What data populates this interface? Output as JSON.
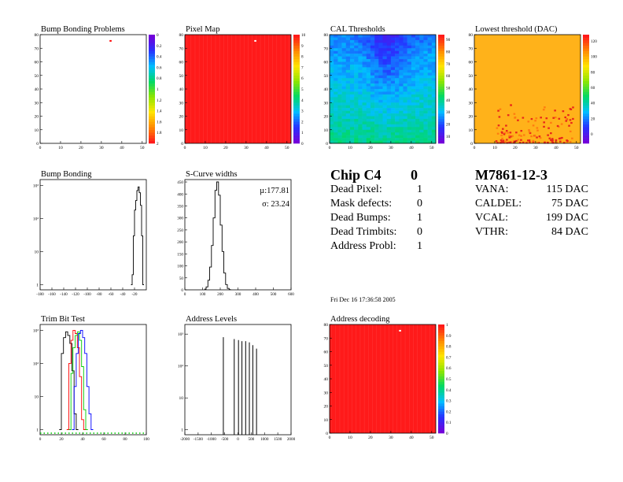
{
  "chart_data": [
    {
      "id": "bump_problems",
      "type": "heatmap",
      "title": "Bump Bonding Problems",
      "xlim": [
        0,
        52
      ],
      "ylim": [
        0,
        80
      ],
      "xticks": [
        0,
        10,
        20,
        30,
        40,
        50
      ],
      "yticks": [
        0,
        10,
        20,
        30,
        40,
        50,
        60,
        70,
        80
      ],
      "fill": "empty",
      "hot_pixels": [
        [
          34,
          75
        ]
      ],
      "palette_labels": [
        "0",
        "0.2",
        "0.4",
        "0.6",
        "0.8",
        "1",
        "1.2",
        "1.4",
        "1.6",
        "1.8",
        "2"
      ],
      "palette_reversed": true
    },
    {
      "id": "pixel_map",
      "type": "heatmap",
      "title": "Pixel Map",
      "xlim": [
        0,
        52
      ],
      "ylim": [
        0,
        80
      ],
      "xticks": [
        0,
        10,
        20,
        30,
        40,
        50
      ],
      "yticks": [
        0,
        10,
        20,
        30,
        40,
        50,
        60,
        70,
        80
      ],
      "fill": "uniform",
      "hot_pixels": [
        [
          34,
          75
        ]
      ],
      "palette_labels": [
        "0",
        "1",
        "2",
        "3",
        "4",
        "5",
        "6",
        "7",
        "8",
        "9",
        "10"
      ],
      "palette_reversed": false
    },
    {
      "id": "cal_thresholds",
      "type": "heatmap",
      "title": "CAL Thresholds",
      "xlim": [
        0,
        52
      ],
      "ylim": [
        0,
        80
      ],
      "xticks": [
        0,
        10,
        20,
        30,
        40,
        50
      ],
      "yticks": [
        0,
        10,
        20,
        30,
        40,
        50,
        60,
        70,
        80
      ],
      "fill": "gradient",
      "palette_labels": [
        "10",
        "20",
        "30",
        "40",
        "50",
        "60",
        "70",
        "80",
        "90"
      ],
      "palette_reversed": false
    },
    {
      "id": "lowest_threshold",
      "type": "heatmap",
      "title": "Lowest threshold (DAC)",
      "xlim": [
        0,
        52
      ],
      "ylim": [
        0,
        80
      ],
      "xticks": [
        0,
        10,
        20,
        30,
        40,
        50
      ],
      "yticks": [
        0,
        10,
        20,
        30,
        40,
        50,
        60,
        70,
        80
      ],
      "fill": "speckle",
      "palette_labels": [
        "0",
        "20",
        "40",
        "60",
        "80",
        "100",
        "120"
      ],
      "palette_reversed": false
    },
    {
      "id": "bump_bonding",
      "type": "line",
      "title": "Bump Bonding",
      "xlim": [
        -180,
        0
      ],
      "xticks": [
        -180,
        -160,
        -140,
        -120,
        -100,
        -80,
        -60,
        -40,
        -20
      ],
      "ylog": true,
      "ylim": [
        0.7,
        1500
      ],
      "ytick_labels": [
        "1",
        "10",
        "10²",
        "10³"
      ],
      "ytick_values": [
        1,
        10,
        100,
        1000
      ],
      "x": [
        -26,
        -24,
        -22,
        -20,
        -18,
        -16,
        -14,
        -12,
        -10,
        -8,
        -6
      ],
      "y": [
        1,
        2,
        30,
        180,
        350,
        700,
        900,
        600,
        250,
        30,
        1
      ]
    },
    {
      "id": "scurve_widths",
      "type": "line",
      "title": "S-Curve widths",
      "xlim": [
        0,
        600
      ],
      "xticks": [
        0,
        100,
        200,
        300,
        400,
        500,
        600
      ],
      "ylim": [
        0,
        460
      ],
      "yticks": [
        0,
        50,
        100,
        150,
        200,
        250,
        300,
        350,
        400,
        450
      ],
      "stats": [
        "µ:177.81",
        "σ: 23.24"
      ],
      "x": [
        110,
        120,
        130,
        140,
        150,
        160,
        170,
        180,
        190,
        200,
        210,
        220,
        230,
        240,
        250
      ],
      "y": [
        3,
        12,
        40,
        95,
        185,
        300,
        415,
        450,
        395,
        270,
        160,
        70,
        22,
        6,
        1
      ]
    },
    {
      "id": "trim_bit_test",
      "type": "line",
      "title": "Trim Bit Test",
      "xlim": [
        0,
        100
      ],
      "xticks": [
        0,
        20,
        40,
        60,
        80,
        100
      ],
      "ylog": true,
      "ylim": [
        0.7,
        1500
      ],
      "ytick_labels": [
        "1",
        "10",
        "10²",
        "10³"
      ],
      "ytick_values": [
        1,
        10,
        100,
        1000
      ],
      "series": [
        {
          "color": "#000000",
          "x": [
            18,
            20,
            22,
            24,
            26,
            28,
            30,
            32,
            34
          ],
          "y": [
            1,
            200,
            600,
            900,
            700,
            400,
            60,
            3,
            1
          ]
        },
        {
          "color": "#ff0000",
          "x": [
            25,
            27,
            29,
            31,
            33,
            35,
            37,
            39,
            41
          ],
          "y": [
            1,
            100,
            500,
            1000,
            800,
            300,
            40,
            2,
            1
          ]
        },
        {
          "color": "#00cc00",
          "x": [
            27,
            29,
            31,
            33,
            35,
            37,
            39,
            41,
            43
          ],
          "y": [
            1,
            50,
            300,
            700,
            900,
            500,
            80,
            4,
            1
          ]
        },
        {
          "color": "#0000ff",
          "x": [
            30,
            32,
            34,
            36,
            38,
            40,
            42,
            44,
            46,
            48
          ],
          "y": [
            1,
            20,
            200,
            800,
            1000,
            600,
            200,
            20,
            3,
            1
          ]
        }
      ],
      "baseline_color": "#00cc00"
    },
    {
      "id": "address_levels",
      "type": "line",
      "title": "Address Levels",
      "xlim": [
        -2000,
        2000
      ],
      "xticks": [
        -2000,
        -1500,
        -1000,
        -500,
        0,
        500,
        1000,
        1500,
        2000
      ],
      "ylog": true,
      "ylim": [
        0.7,
        2000
      ],
      "ytick_labels": [
        "1",
        "10",
        "10²",
        "10³"
      ],
      "ytick_values": [
        1,
        10,
        100,
        1000
      ],
      "peaks_x": [
        -550,
        -140,
        20,
        150,
        290,
        430,
        560,
        700
      ],
      "peaks_y": [
        800,
        700,
        650,
        600,
        600,
        550,
        450,
        350
      ]
    },
    {
      "id": "address_decoding",
      "type": "heatmap",
      "title": "Address decoding",
      "xlim": [
        0,
        52
      ],
      "ylim": [
        0,
        80
      ],
      "xticks": [
        0,
        10,
        20,
        30,
        40,
        50
      ],
      "yticks": [
        0,
        10,
        20,
        30,
        40,
        50,
        60,
        70,
        80
      ],
      "fill": "uniform",
      "hot_pixels": [
        [
          34,
          75
        ]
      ],
      "palette_labels": [
        "0",
        "0.1",
        "0.2",
        "0.3",
        "0.4",
        "0.5",
        "0.6",
        "0.7",
        "0.8",
        "0.9",
        "1"
      ],
      "palette_reversed": false
    }
  ],
  "chip_info": {
    "title": "Chip C4",
    "title_value": "0",
    "rows": [
      {
        "label": "Dead Pixel:",
        "value": "1"
      },
      {
        "label": "Mask defects:",
        "value": "0"
      },
      {
        "label": "Dead Bumps:",
        "value": "1"
      },
      {
        "label": "Dead Trimbits:",
        "value": "0"
      },
      {
        "label": "Address Probl:",
        "value": "1"
      }
    ]
  },
  "module_info": {
    "title": "M7861-12-3",
    "rows": [
      {
        "label": "VANA:",
        "value": "115 DAC"
      },
      {
        "label": "CALDEL:",
        "value": "75 DAC"
      },
      {
        "label": "VCAL:",
        "value": "199 DAC"
      },
      {
        "label": "VTHR:",
        "value": "84 DAC"
      }
    ]
  },
  "timestamp": "Fri Dec 16 17:36:58 2005"
}
